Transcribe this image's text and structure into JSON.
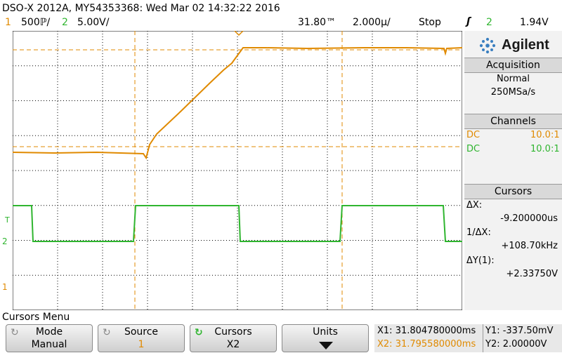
{
  "header": {
    "title": "DSO-X 2012A, MY54353368: Wed Mar 02 14:32:22 2016",
    "ch1_num": "1",
    "ch1_scale": "500ℙ/",
    "ch2_num": "2",
    "ch2_scale": "5.00V/",
    "time_offset": "31.80™",
    "time_scale": "2.000µ/",
    "run_state": "Stop",
    "trigger_icon": "trigger-edge-icon",
    "trigger_source": "2",
    "trigger_level": "1.94V"
  },
  "brand": {
    "logo": "agilent-spark-icon",
    "name": "Agilent"
  },
  "acquisition": {
    "title": "Acquisition",
    "mode": "Normal",
    "rate": "250MSa/s"
  },
  "channels": {
    "title": "Channels",
    "rows": [
      {
        "coupling": "DC",
        "probe": "10.0:1",
        "color": "#e08a00"
      },
      {
        "coupling": "DC",
        "probe": "10.0:1",
        "color": "#2fb52f"
      }
    ]
  },
  "cursors_panel": {
    "title": "Cursors",
    "dx_label": "ΔX:",
    "dx_value": "-9.200000us",
    "inv_label": "1/ΔX:",
    "inv_value": "+108.70kHz",
    "dy_label": "ΔY(1):",
    "dy_value": "+2.33750V"
  },
  "menu": {
    "title": "Cursors Menu",
    "softkeys": [
      {
        "top": "Mode",
        "bottom": "Manual"
      },
      {
        "top": "Source",
        "bottom": "1"
      },
      {
        "top": "Cursors",
        "bottom": "X2"
      },
      {
        "top": "Units",
        "bottom": ""
      }
    ]
  },
  "readout": {
    "x1": "X1: 31.804780000ms",
    "x2": "X2: 31.795580000ms",
    "y1": "Y1: -337.50mV",
    "y2": "Y2: 2.00000V"
  },
  "markers": {
    "ch1": "1",
    "ch2": "2",
    "trigger": "T"
  },
  "colors": {
    "ch1": "#e08a00",
    "ch2": "#2fb52f",
    "grid": "#000000"
  }
}
